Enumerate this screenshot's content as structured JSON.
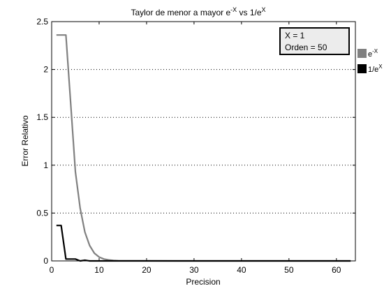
{
  "chart_data": {
    "type": "line",
    "title": {
      "prefix": "Taylor de menor a mayor e",
      "sup1": "-X",
      "middle": " vs 1/e",
      "sup2": "X"
    },
    "xlabel": "Precision",
    "ylabel": "Error Relativo",
    "xlim": [
      0,
      64
    ],
    "ylim": [
      0,
      2.5
    ],
    "xticks": [
      0,
      10,
      20,
      30,
      40,
      50,
      60
    ],
    "yticks": [
      0,
      0.5,
      1,
      1.5,
      2,
      2.5
    ],
    "ytick_labels": [
      "0",
      "0.5",
      "1",
      "1.5",
      "2",
      "2.5"
    ],
    "grid": "y-dotted",
    "legend_position": "outside-right",
    "annotation": [
      "X = 1",
      "Orden = 50"
    ],
    "series": [
      {
        "name_base": "e",
        "name_sup": "-X",
        "color": "#808080",
        "x": [
          1,
          2,
          3,
          4,
          5,
          6,
          7,
          8,
          9,
          10,
          11,
          12,
          13,
          14,
          15,
          20,
          30,
          40,
          50,
          55,
          60,
          63
        ],
        "y": [
          2.36,
          2.36,
          2.36,
          1.65,
          0.93,
          0.55,
          0.3,
          0.16,
          0.08,
          0.04,
          0.02,
          0.01,
          0.005,
          0.002,
          0.001,
          0.0005,
          0.0003,
          0.0002,
          0.0001,
          0.0001,
          0.0,
          0.0
        ]
      },
      {
        "name_base": "1/e",
        "name_sup": "X",
        "color": "#000000",
        "x": [
          1,
          2,
          3,
          4,
          5,
          6,
          7,
          8,
          9,
          10,
          11,
          12,
          13,
          14,
          15,
          20,
          30,
          40,
          50,
          60,
          63
        ],
        "y": [
          0.37,
          0.37,
          0.02,
          0.02,
          0.02,
          0.0,
          0.007,
          0.0,
          0.0,
          0.0,
          0.0,
          0.0,
          0.0,
          0.0,
          0.0,
          0.0,
          0.0,
          0.0,
          0.0,
          0.0,
          0.0
        ]
      }
    ]
  }
}
